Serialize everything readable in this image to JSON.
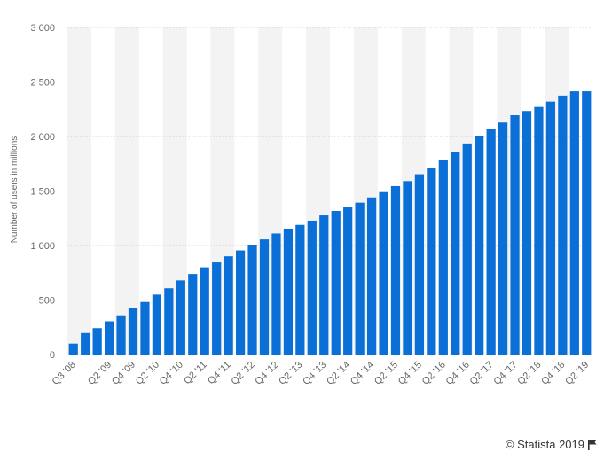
{
  "chart_data": {
    "type": "bar",
    "ylabel": "Number of users in millions",
    "ylim": [
      0,
      3000
    ],
    "yticks": [
      0,
      500,
      1000,
      1500,
      2000,
      2500,
      3000
    ],
    "ytick_labels": [
      "0",
      "500",
      "1 000",
      "1 500",
      "2 000",
      "2 500",
      "3 000"
    ],
    "grid": true,
    "categories": [
      "Q3 '08",
      "Q4 '08",
      "Q1 '09",
      "Q2 '09",
      "Q3 '09",
      "Q4 '09",
      "Q1 '10",
      "Q2 '10",
      "Q3 '10",
      "Q4 '10",
      "Q1 '11",
      "Q2 '11",
      "Q3 '11",
      "Q4 '11",
      "Q1 '12",
      "Q2 '12",
      "Q3 '12",
      "Q4 '12",
      "Q1 '13",
      "Q2 '13",
      "Q3 '13",
      "Q4 '13",
      "Q1 '14",
      "Q2 '14",
      "Q3 '14",
      "Q4 '14",
      "Q1 '15",
      "Q2 '15",
      "Q3 '15",
      "Q4 '15",
      "Q1 '16",
      "Q2 '16",
      "Q3 '16",
      "Q4 '16",
      "Q1 '17",
      "Q2 '17",
      "Q3 '17",
      "Q4 '17",
      "Q1 '18",
      "Q2 '18",
      "Q3 '18",
      "Q4 '18",
      "Q1 '19",
      "Q2 '19"
    ],
    "xtick_labels": [
      "Q3 '08",
      "Q2 '09",
      "Q4 '09",
      "Q2 '10",
      "Q4 '10",
      "Q2 '11",
      "Q4 '11",
      "Q2 '12",
      "Q4 '12",
      "Q2 '13",
      "Q4 '13",
      "Q2 '14",
      "Q4 '14",
      "Q2 '15",
      "Q4 '15",
      "Q2 '16",
      "Q4 '16",
      "Q2 '17",
      "Q4 '17",
      "Q2 '18",
      "Q4 '18",
      "Q2 '19"
    ],
    "values": [
      100,
      197,
      242,
      305,
      360,
      431,
      482,
      550,
      608,
      680,
      739,
      800,
      845,
      901,
      955,
      1007,
      1056,
      1110,
      1155,
      1189,
      1228,
      1276,
      1317,
      1350,
      1393,
      1441,
      1490,
      1545,
      1591,
      1654,
      1712,
      1788,
      1860,
      1936,
      2006,
      2069,
      2128,
      2195,
      2234,
      2271,
      2320,
      2375,
      2414,
      2414
    ],
    "bar_color": "#0a6fd6",
    "band_color": "#f3f3f3",
    "grid_color": "#c8c8c8",
    "tick_color": "#666666"
  },
  "credit": {
    "text": "© Statista 2019",
    "icon": "flag-icon"
  }
}
